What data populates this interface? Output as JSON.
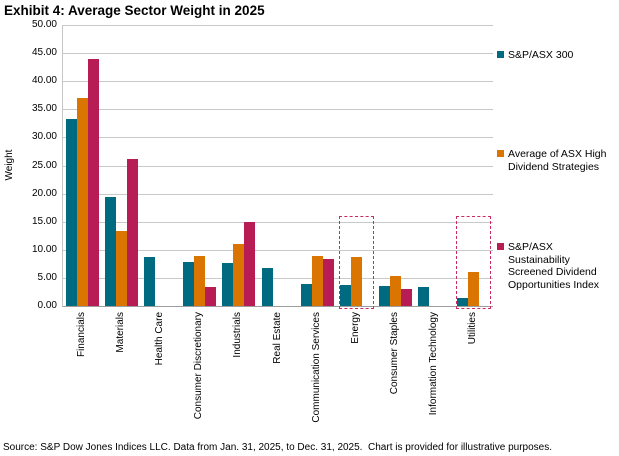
{
  "title": "Exhibit 4: Average Sector Weight in 2025",
  "source": "Source: S&P Dow Jones Indices LLC. Data from Jan. 31, 2025, to Dec. 31, 2025.  Chart is provided for illustrative purposes.",
  "chart_data": {
    "type": "bar",
    "title": "Exhibit 4: Average Sector Weight in 2025",
    "xlabel": "",
    "ylabel": "Weight",
    "ylim": [
      0,
      50
    ],
    "ytick_step": 5,
    "grid": true,
    "legend_position": "right",
    "categories": [
      "Financials",
      "Materials",
      "Health Care",
      "Consumer Discretionary",
      "Industrials",
      "Real Estate",
      "Communication Services",
      "Energy",
      "Consumer Staples",
      "Information Technology",
      "Utilities"
    ],
    "series": [
      {
        "name": "S&P/ASX 300",
        "color": "#006a80",
        "values": [
          33.2,
          19.4,
          8.8,
          7.8,
          7.6,
          6.7,
          3.9,
          3.7,
          3.6,
          3.3,
          1.4
        ]
      },
      {
        "name": "Average of ASX High Dividend Strategies",
        "color": "#d97500",
        "values": [
          37.0,
          13.4,
          null,
          8.9,
          11.0,
          null,
          8.9,
          8.8,
          5.4,
          null,
          6.0
        ]
      },
      {
        "name": "S&P/ASX Sustainability Screened Dividend Opportunities Index",
        "color": "#b71d54",
        "values": [
          44.0,
          26.1,
          null,
          3.3,
          14.9,
          null,
          8.3,
          null,
          3.1,
          null,
          null
        ]
      }
    ],
    "highlight_boxes": {
      "categories": [
        "Energy",
        "Utilities"
      ],
      "top_value": 16,
      "style": "dashed",
      "color": "#cb2a62",
      "note": "dashed outline marking sectors where the sustainability screened index holds no weight"
    }
  }
}
